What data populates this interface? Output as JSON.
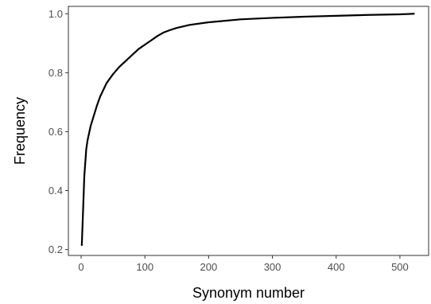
{
  "chart_data": {
    "type": "line",
    "title": "",
    "xlabel": "Synonym number",
    "ylabel": "Frequency",
    "xlim": [
      -20,
      545
    ],
    "ylim": [
      0.18,
      1.025
    ],
    "x_ticks": [
      0,
      100,
      200,
      300,
      400,
      500
    ],
    "y_ticks": [
      0.2,
      0.4,
      0.6,
      0.8,
      1.0
    ],
    "x_tick_labels": [
      "0",
      "100",
      "200",
      "300",
      "400",
      "500"
    ],
    "y_tick_labels": [
      "0.2",
      "0.4",
      "0.6",
      "0.8",
      "1.0"
    ],
    "grid": false,
    "series": [
      {
        "color": "#000000",
        "x": [
          1,
          3,
          5,
          8,
          10,
          15,
          20,
          25,
          30,
          40,
          50,
          60,
          70,
          80,
          90,
          100,
          110,
          120,
          130,
          140,
          150,
          170,
          200,
          250,
          300,
          350,
          400,
          450,
          500,
          523
        ],
        "y": [
          0.213,
          0.33,
          0.45,
          0.54,
          0.57,
          0.62,
          0.655,
          0.69,
          0.72,
          0.765,
          0.795,
          0.82,
          0.84,
          0.86,
          0.88,
          0.895,
          0.91,
          0.925,
          0.937,
          0.945,
          0.952,
          0.962,
          0.971,
          0.981,
          0.986,
          0.99,
          0.993,
          0.996,
          0.998,
          1.0
        ]
      }
    ]
  }
}
